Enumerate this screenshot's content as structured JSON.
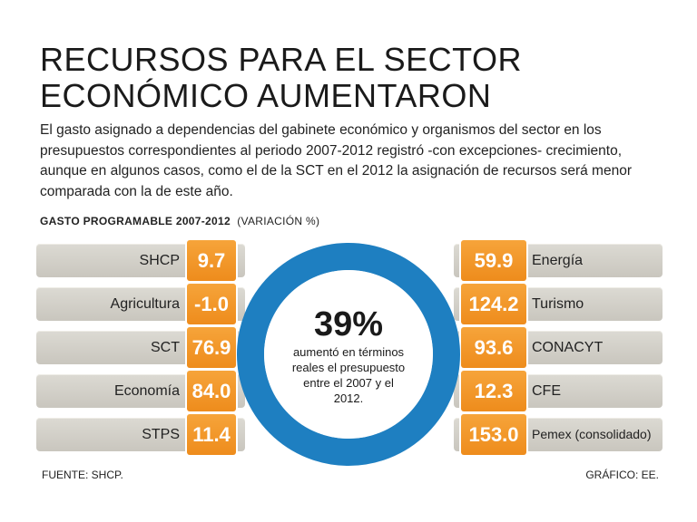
{
  "title_line1": "RECURSOS PARA EL SECTOR",
  "title_line2": "ECONÓMICO AUMENTARON",
  "intro": "El gasto asignado a dependencias del gabinete económico y organismos del sector en los presupuestos correspondientes al periodo 2007-2012 registró -con excepciones- crecimiento, aunque en algunos casos, como el de la SCT en el 2012 la asignación de recursos será menor comparada con la de este año.",
  "subtitle_bold": "GASTO PROGRAMABLE 2007-2012",
  "subtitle_rest": "(VARIACIÓN %)",
  "center": {
    "percent": "39%",
    "description": "aumentó en términos reales el presupuesto entre el 2007 y el 2012."
  },
  "source": "FUENTE: SHCP.",
  "credit": "GRÁFICO: EE.",
  "colors": {
    "orange": "#f39a2c",
    "ring": "#1e7fc1",
    "row_bg": "#d3d0c8"
  },
  "chart_data": {
    "type": "table",
    "title": "GASTO PROGRAMABLE 2007-2012",
    "unit": "variación %",
    "left": [
      {
        "category": "SHCP",
        "value": 9.7,
        "label": "9.7"
      },
      {
        "category": "Agricultura",
        "value": -1.0,
        "label": "-1.0"
      },
      {
        "category": "SCT",
        "value": 76.9,
        "label": "76.9"
      },
      {
        "category": "Economía",
        "value": 84.0,
        "label": "84.0"
      },
      {
        "category": "STPS",
        "value": 11.4,
        "label": "11.4"
      }
    ],
    "right": [
      {
        "category": "Energía",
        "value": 59.9,
        "label": "59.9"
      },
      {
        "category": "Turismo",
        "value": 124.2,
        "label": "124.2"
      },
      {
        "category": "CONACYT",
        "value": 93.6,
        "label": "93.6"
      },
      {
        "category": "CFE",
        "value": 12.3,
        "label": "12.3"
      },
      {
        "category": "Pemex (consolidado)",
        "value": 153.0,
        "label": "153.0"
      }
    ]
  }
}
